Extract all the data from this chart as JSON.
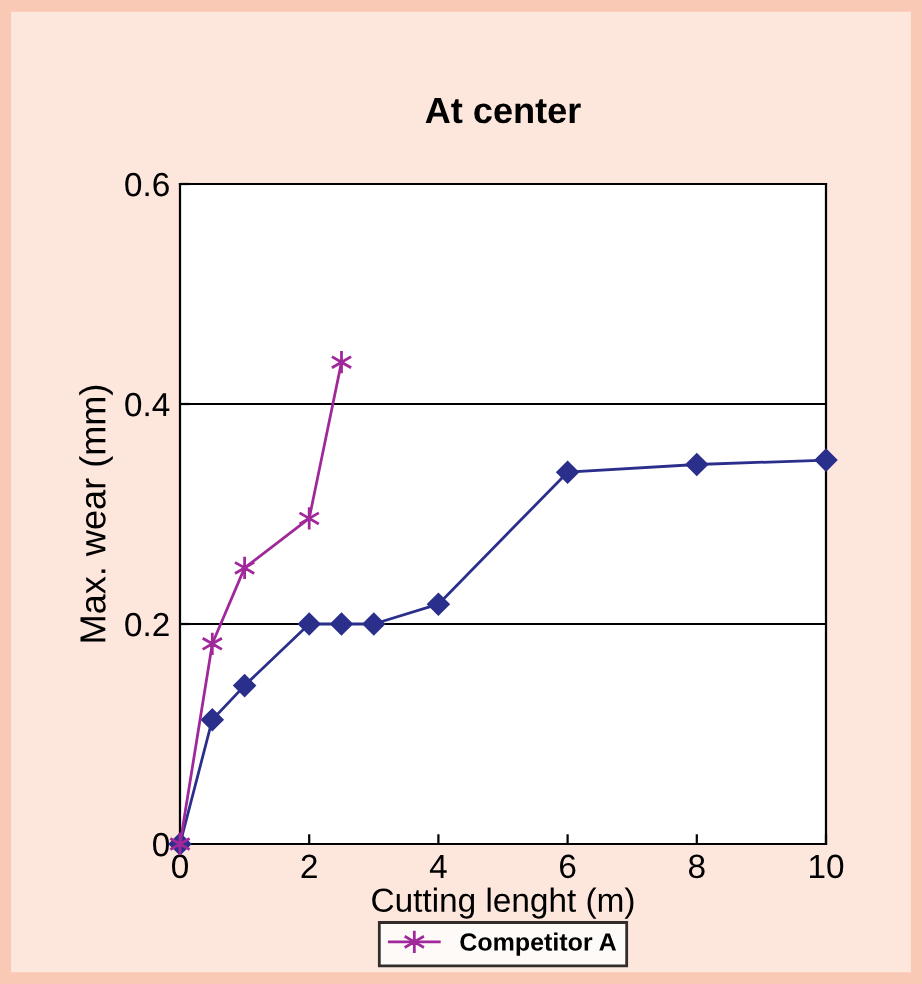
{
  "chart_data": {
    "type": "line",
    "title": "At center",
    "xlabel": "Cutting lenght (m)",
    "ylabel": "Max. wear (mm)",
    "xlim": [
      0,
      10
    ],
    "xticks": [
      0,
      2,
      4,
      6,
      8,
      10
    ],
    "ylim": [
      0,
      0.6
    ],
    "yticks": [
      0,
      0.2,
      0.4,
      0.6
    ],
    "grid": "y",
    "legend": "bottom",
    "line_style": "solid",
    "series": [
      {
        "color": "#2b2f8c",
        "marker": "diamond",
        "x": [
          0,
          0.5,
          1,
          2,
          2.5,
          3,
          4,
          6,
          8,
          10
        ],
        "values": [
          0,
          0.113,
          0.144,
          0.2,
          0.2,
          0.2,
          0.218,
          0.338,
          0.345,
          0.349
        ]
      },
      {
        "name": "Competitor A",
        "color": "#a0289a",
        "marker": "cross",
        "x": [
          0,
          0.5,
          1,
          2,
          2.5
        ],
        "values": [
          0,
          0.182,
          0.251,
          0.296,
          0.438
        ]
      }
    ]
  }
}
